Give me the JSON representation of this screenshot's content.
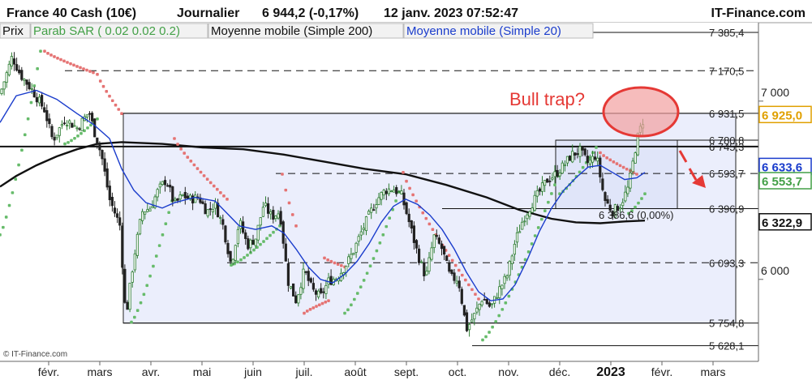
{
  "header": {
    "instrument": "France 40 Cash (10€)",
    "period": "Journalier",
    "quote": "6 944,2 (-0,17%)",
    "datetime": "12 janv. 2023 07:52:47",
    "brand": "IT-Finance.com"
  },
  "legend": {
    "prix": "Prix",
    "sar": "Parab SAR ( 0.02 0.02 0.2)",
    "ma200": "Moyenne mobile (Simple 200)",
    "ma20": "Moyenne mobile (Simple 20)"
  },
  "annotation": "Bull trap?",
  "fib_label": "6 386,6 (0,00%)",
  "source": "© IT-Finance.com",
  "colors": {
    "up": "#2e7d32",
    "down": "#222222",
    "sar_up": "#66bb6a",
    "sar_down": "#e57373",
    "ma20": "#1a3ccc",
    "ma200": "#111111",
    "annotation": "#e53935",
    "box_fill": "#e4e8fb"
  },
  "chart_data": {
    "type": "candlestick",
    "y_range": [
      5540,
      7440
    ],
    "y_ticks": [
      {
        "value": 7000,
        "label": "7 000"
      },
      {
        "value": 6000,
        "label": "6 000"
      }
    ],
    "x_months": [
      "févr.",
      "mars",
      "avr.",
      "mai",
      "juin",
      "juil.",
      "août",
      "sept.",
      "oct.",
      "nov.",
      "déc.",
      "2023",
      "févr.",
      "mars"
    ],
    "levels": [
      {
        "value": 7385.4,
        "label": "7 385,4",
        "style": "solid"
      },
      {
        "value": 7170.5,
        "label": "7 170,5",
        "style": "dash"
      },
      {
        "value": 6931.5,
        "label": "6 931,5",
        "style": "solid"
      },
      {
        "value": 6780.8,
        "label": "6 780,8",
        "style": "solid"
      },
      {
        "value": 6745.3,
        "label": "6 745,3",
        "style": "solid"
      },
      {
        "value": 6593.7,
        "label": "6 593,7",
        "style": "dash"
      },
      {
        "value": 6396.9,
        "label": "6 396,9",
        "style": "solid"
      },
      {
        "value": 6093.3,
        "label": "6 093,3",
        "style": "dash"
      },
      {
        "value": 5754.8,
        "label": "5 754,8",
        "style": "solid"
      },
      {
        "value": 5628.1,
        "label": "5 628,1",
        "style": "solid"
      }
    ],
    "price_tags": [
      {
        "value": 6925.0,
        "label": "6 925,0",
        "color": "#e0a000",
        "bg": "#ffffff"
      },
      {
        "value": 6633.6,
        "label": "6 633,6",
        "color": "#1a3ccc",
        "bg": "#ffffff"
      },
      {
        "value": 6553.7,
        "label": "6 553,7",
        "color": "#43a047",
        "bg": "#ffffff"
      },
      {
        "value": 6322.9,
        "label": "6 322,9",
        "color": "#111111",
        "bg": "#ffffff"
      }
    ],
    "close_path": [
      [
        0,
        7040
      ],
      [
        15,
        7250
      ],
      [
        25,
        7150
      ],
      [
        40,
        7060
      ],
      [
        55,
        6950
      ],
      [
        65,
        6780
      ],
      [
        80,
        6900
      ],
      [
        95,
        6850
      ],
      [
        110,
        6940
      ],
      [
        118,
        6800
      ],
      [
        125,
        6700
      ],
      [
        135,
        6450
      ],
      [
        148,
        6300
      ],
      [
        155,
        5780
      ],
      [
        165,
        6120
      ],
      [
        175,
        6380
      ],
      [
        185,
        6400
      ],
      [
        195,
        6500
      ],
      [
        205,
        6560
      ],
      [
        215,
        6420
      ],
      [
        225,
        6470
      ],
      [
        235,
        6450
      ],
      [
        245,
        6460
      ],
      [
        255,
        6380
      ],
      [
        265,
        6420
      ],
      [
        275,
        6300
      ],
      [
        285,
        6080
      ],
      [
        295,
        6330
      ],
      [
        305,
        6190
      ],
      [
        315,
        6230
      ],
      [
        325,
        6420
      ],
      [
        335,
        6350
      ],
      [
        345,
        6380
      ],
      [
        355,
        5990
      ],
      [
        365,
        5880
      ],
      [
        375,
        6050
      ],
      [
        385,
        5940
      ],
      [
        395,
        5900
      ],
      [
        405,
        5990
      ],
      [
        415,
        6010
      ],
      [
        425,
        6070
      ],
      [
        435,
        6150
      ],
      [
        445,
        6260
      ],
      [
        455,
        6360
      ],
      [
        465,
        6450
      ],
      [
        475,
        6500
      ],
      [
        485,
        6510
      ],
      [
        495,
        6470
      ],
      [
        505,
        6310
      ],
      [
        515,
        6140
      ],
      [
        525,
        6010
      ],
      [
        535,
        6240
      ],
      [
        545,
        6170
      ],
      [
        555,
        6010
      ],
      [
        565,
        6000
      ],
      [
        575,
        5720
      ],
      [
        585,
        5800
      ],
      [
        595,
        5900
      ],
      [
        605,
        5840
      ],
      [
        615,
        5940
      ],
      [
        625,
        6020
      ],
      [
        635,
        6210
      ],
      [
        645,
        6340
      ],
      [
        655,
        6420
      ],
      [
        665,
        6490
      ],
      [
        675,
        6560
      ],
      [
        685,
        6590
      ],
      [
        695,
        6640
      ],
      [
        705,
        6700
      ],
      [
        715,
        6720
      ],
      [
        725,
        6650
      ],
      [
        735,
        6700
      ],
      [
        745,
        6450
      ],
      [
        755,
        6380
      ],
      [
        765,
        6420
      ],
      [
        775,
        6520
      ],
      [
        785,
        6780
      ],
      [
        795,
        6925
      ]
    ],
    "sar_dots": [
      {
        "x_start": 0,
        "x_end": 50,
        "y_start": 6250,
        "y_end": 7280,
        "trend": "up"
      },
      {
        "x_start": 55,
        "x_end": 115,
        "y_start": 7280,
        "y_end": 7160,
        "trend": "down"
      },
      {
        "x_start": 80,
        "x_end": 120,
        "y_start": 6760,
        "y_end": 6900,
        "trend": "up"
      },
      {
        "x_start": 120,
        "x_end": 150,
        "y_start": 7150,
        "y_end": 6930,
        "trend": "down"
      },
      {
        "x_start": 162,
        "x_end": 212,
        "y_start": 5760,
        "y_end": 6440,
        "trend": "up"
      },
      {
        "x_start": 215,
        "x_end": 280,
        "y_start": 6790,
        "y_end": 6450,
        "trend": "down"
      },
      {
        "x_start": 285,
        "x_end": 345,
        "y_start": 6080,
        "y_end": 6300,
        "trend": "up"
      },
      {
        "x_start": 348,
        "x_end": 365,
        "y_start": 6590,
        "y_end": 6300,
        "trend": "down"
      },
      {
        "x_start": 375,
        "x_end": 405,
        "y_start": 5810,
        "y_end": 5880,
        "trend": "down"
      },
      {
        "x_start": 400,
        "x_end": 425,
        "y_start": 6120,
        "y_end": 6070,
        "trend": "down"
      },
      {
        "x_start": 425,
        "x_end": 492,
        "y_start": 5810,
        "y_end": 6490,
        "trend": "up"
      },
      {
        "x_start": 497,
        "x_end": 590,
        "y_start": 6600,
        "y_end": 5890,
        "trend": "down"
      },
      {
        "x_start": 595,
        "x_end": 688,
        "y_start": 5660,
        "y_end": 6580,
        "trend": "up"
      },
      {
        "x_start": 690,
        "x_end": 735,
        "y_start": 6480,
        "y_end": 6740,
        "trend": "up"
      },
      {
        "x_start": 740,
        "x_end": 785,
        "y_start": 6710,
        "y_end": 6590,
        "trend": "down"
      },
      {
        "x_start": 775,
        "x_end": 795,
        "y_start": 6370,
        "y_end": 6480,
        "trend": "up"
      }
    ],
    "ma20": [
      [
        0,
        6880
      ],
      [
        20,
        7030
      ],
      [
        45,
        7060
      ],
      [
        70,
        7010
      ],
      [
        95,
        6930
      ],
      [
        115,
        6870
      ],
      [
        135,
        6790
      ],
      [
        150,
        6620
      ],
      [
        165,
        6500
      ],
      [
        180,
        6430
      ],
      [
        200,
        6400
      ],
      [
        215,
        6430
      ],
      [
        240,
        6460
      ],
      [
        265,
        6440
      ],
      [
        280,
        6370
      ],
      [
        295,
        6300
      ],
      [
        315,
        6280
      ],
      [
        335,
        6300
      ],
      [
        350,
        6260
      ],
      [
        365,
        6170
      ],
      [
        380,
        6070
      ],
      [
        395,
        6000
      ],
      [
        410,
        5980
      ],
      [
        425,
        6030
      ],
      [
        440,
        6100
      ],
      [
        455,
        6200
      ],
      [
        470,
        6320
      ],
      [
        485,
        6410
      ],
      [
        500,
        6450
      ],
      [
        515,
        6420
      ],
      [
        530,
        6360
      ],
      [
        545,
        6280
      ],
      [
        560,
        6170
      ],
      [
        575,
        6040
      ],
      [
        590,
        5930
      ],
      [
        605,
        5880
      ],
      [
        620,
        5890
      ],
      [
        635,
        5970
      ],
      [
        650,
        6110
      ],
      [
        665,
        6270
      ],
      [
        680,
        6400
      ],
      [
        695,
        6500
      ],
      [
        710,
        6570
      ],
      [
        725,
        6630
      ],
      [
        740,
        6640
      ],
      [
        755,
        6600
      ],
      [
        770,
        6560
      ],
      [
        785,
        6570
      ],
      [
        795,
        6600
      ]
    ],
    "ma200": [
      [
        0,
        6520
      ],
      [
        20,
        6580
      ],
      [
        45,
        6640
      ],
      [
        70,
        6690
      ],
      [
        95,
        6730
      ],
      [
        120,
        6760
      ],
      [
        150,
        6770
      ],
      [
        200,
        6760
      ],
      [
        250,
        6740
      ],
      [
        300,
        6730
      ],
      [
        350,
        6700
      ],
      [
        400,
        6660
      ],
      [
        450,
        6620
      ],
      [
        500,
        6590
      ],
      [
        550,
        6530
      ],
      [
        600,
        6460
      ],
      [
        640,
        6390
      ],
      [
        680,
        6340
      ],
      [
        710,
        6320
      ],
      [
        740,
        6315
      ],
      [
        770,
        6325
      ],
      [
        795,
        6330
      ]
    ]
  }
}
